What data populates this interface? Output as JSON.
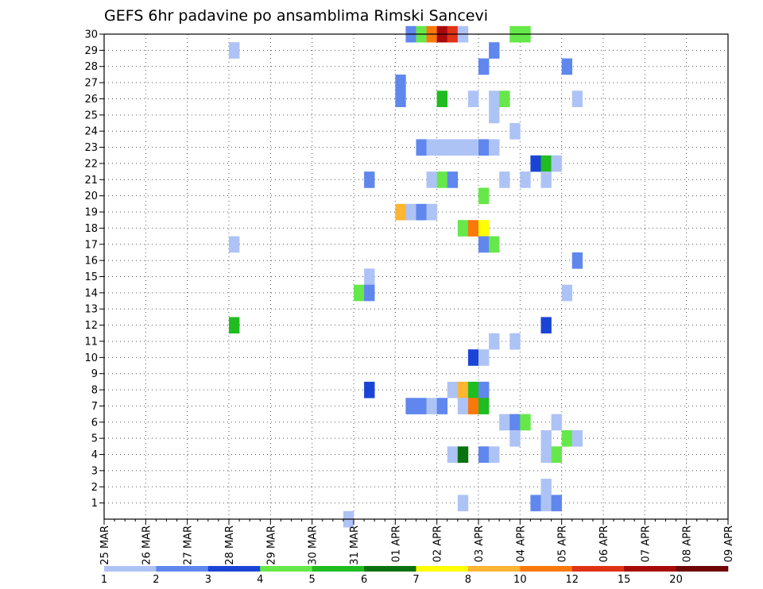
{
  "chart_data": {
    "type": "heatmap",
    "title": "GEFS 6hr padavine po ansamblima Rimski Sancevi",
    "xlabel": "",
    "ylabel": "",
    "x_ticks": [
      "25 MAR",
      "26 MAR",
      "27 MAR",
      "28 MAR",
      "29 MAR",
      "30 MAR",
      "31 MAR",
      "01 APR",
      "02 APR",
      "03 APR",
      "04 APR",
      "05 APR",
      "06 APR",
      "07 APR",
      "08 APR",
      "09 APR"
    ],
    "y_ticks": [
      "1",
      "2",
      "3",
      "4",
      "5",
      "6",
      "7",
      "8",
      "9",
      "10",
      "11",
      "12",
      "13",
      "14",
      "15",
      "16",
      "17",
      "18",
      "19",
      "20",
      "21",
      "22",
      "23",
      "24",
      "25",
      "26",
      "27",
      "28",
      "29",
      "30"
    ],
    "xlim": [
      "25 MAR 00z",
      "09 APR 00z"
    ],
    "ylim": [
      0,
      30
    ],
    "grid": true,
    "steps_per_day": 4,
    "colorbar": {
      "levels": [
        "1",
        "2",
        "3",
        "4",
        "5",
        "6",
        "7",
        "8",
        "10",
        "12",
        "15",
        "20"
      ],
      "colors": [
        "#aec3f5",
        "#5f87ee",
        "#1a44d6",
        "#66e84a",
        "#1fbd1f",
        "#0a7310",
        "#ffff00",
        "#ffb432",
        "#fa780a",
        "#e03214",
        "#a80a0a",
        "#6e0404"
      ]
    },
    "cells": [
      {
        "member": 30,
        "step": 29,
        "level": 2
      },
      {
        "member": 30,
        "step": 30,
        "level": 4
      },
      {
        "member": 30,
        "step": 31,
        "level": 10
      },
      {
        "member": 30,
        "step": 32,
        "level": 15
      },
      {
        "member": 30,
        "step": 33,
        "level": 12
      },
      {
        "member": 30,
        "step": 34,
        "level": 1
      },
      {
        "member": 30,
        "step": 39,
        "level": 4
      },
      {
        "member": 30,
        "step": 40,
        "level": 4
      },
      {
        "member": 29,
        "step": 12,
        "level": 1
      },
      {
        "member": 29,
        "step": 37,
        "level": 2
      },
      {
        "member": 28,
        "step": 36,
        "level": 2
      },
      {
        "member": 28,
        "step": 44,
        "level": 2
      },
      {
        "member": 27,
        "step": 28,
        "level": 2
      },
      {
        "member": 26,
        "step": 28,
        "level": 2
      },
      {
        "member": 26,
        "step": 32,
        "level": 5
      },
      {
        "member": 26,
        "step": 35,
        "level": 1
      },
      {
        "member": 26,
        "step": 37,
        "level": 1
      },
      {
        "member": 26,
        "step": 38,
        "level": 4
      },
      {
        "member": 26,
        "step": 45,
        "level": 1
      },
      {
        "member": 25,
        "step": 37,
        "level": 1
      },
      {
        "member": 24,
        "step": 39,
        "level": 1
      },
      {
        "member": 23,
        "step": 30,
        "level": 2
      },
      {
        "member": 23,
        "step": 31,
        "level": 1
      },
      {
        "member": 23,
        "step": 32,
        "level": 1
      },
      {
        "member": 23,
        "step": 33,
        "level": 1
      },
      {
        "member": 23,
        "step": 34,
        "level": 1
      },
      {
        "member": 23,
        "step": 35,
        "level": 1
      },
      {
        "member": 23,
        "step": 36,
        "level": 2
      },
      {
        "member": 23,
        "step": 37,
        "level": 1
      },
      {
        "member": 22,
        "step": 41,
        "level": 3
      },
      {
        "member": 22,
        "step": 42,
        "level": 5
      },
      {
        "member": 22,
        "step": 43,
        "level": 1
      },
      {
        "member": 21,
        "step": 25,
        "level": 2
      },
      {
        "member": 21,
        "step": 31,
        "level": 1
      },
      {
        "member": 21,
        "step": 32,
        "level": 4
      },
      {
        "member": 21,
        "step": 33,
        "level": 2
      },
      {
        "member": 21,
        "step": 38,
        "level": 1
      },
      {
        "member": 21,
        "step": 40,
        "level": 1
      },
      {
        "member": 21,
        "step": 42,
        "level": 1
      },
      {
        "member": 20,
        "step": 36,
        "level": 4
      },
      {
        "member": 19,
        "step": 28,
        "level": 8
      },
      {
        "member": 19,
        "step": 29,
        "level": 1
      },
      {
        "member": 19,
        "step": 30,
        "level": 2
      },
      {
        "member": 19,
        "step": 31,
        "level": 1
      },
      {
        "member": 18,
        "step": 34,
        "level": 4
      },
      {
        "member": 18,
        "step": 35,
        "level": 10
      },
      {
        "member": 18,
        "step": 36,
        "level": 7
      },
      {
        "member": 17,
        "step": 12,
        "level": 1
      },
      {
        "member": 17,
        "step": 36,
        "level": 2
      },
      {
        "member": 17,
        "step": 37,
        "level": 4
      },
      {
        "member": 16,
        "step": 45,
        "level": 2
      },
      {
        "member": 15,
        "step": 25,
        "level": 1
      },
      {
        "member": 14,
        "step": 24,
        "level": 4
      },
      {
        "member": 14,
        "step": 25,
        "level": 2
      },
      {
        "member": 14,
        "step": 44,
        "level": 1
      },
      {
        "member": 12,
        "step": 12,
        "level": 5
      },
      {
        "member": 12,
        "step": 42,
        "level": 3
      },
      {
        "member": 11,
        "step": 37,
        "level": 1
      },
      {
        "member": 11,
        "step": 39,
        "level": 1
      },
      {
        "member": 10,
        "step": 35,
        "level": 3
      },
      {
        "member": 10,
        "step": 36,
        "level": 1
      },
      {
        "member": 8,
        "step": 25,
        "level": 3
      },
      {
        "member": 8,
        "step": 33,
        "level": 1
      },
      {
        "member": 8,
        "step": 34,
        "level": 8
      },
      {
        "member": 8,
        "step": 35,
        "level": 5
      },
      {
        "member": 8,
        "step": 36,
        "level": 2
      },
      {
        "member": 7,
        "step": 29,
        "level": 2
      },
      {
        "member": 7,
        "step": 30,
        "level": 2
      },
      {
        "member": 7,
        "step": 31,
        "level": 1
      },
      {
        "member": 7,
        "step": 32,
        "level": 2
      },
      {
        "member": 7,
        "step": 34,
        "level": 1
      },
      {
        "member": 7,
        "step": 35,
        "level": 10
      },
      {
        "member": 7,
        "step": 36,
        "level": 5
      },
      {
        "member": 6,
        "step": 38,
        "level": 1
      },
      {
        "member": 6,
        "step": 39,
        "level": 2
      },
      {
        "member": 6,
        "step": 40,
        "level": 4
      },
      {
        "member": 6,
        "step": 43,
        "level": 1
      },
      {
        "member": 5,
        "step": 39,
        "level": 1
      },
      {
        "member": 5,
        "step": 42,
        "level": 1
      },
      {
        "member": 5,
        "step": 44,
        "level": 4
      },
      {
        "member": 5,
        "step": 45,
        "level": 1
      },
      {
        "member": 4,
        "step": 33,
        "level": 1
      },
      {
        "member": 4,
        "step": 34,
        "level": 6
      },
      {
        "member": 4,
        "step": 36,
        "level": 2
      },
      {
        "member": 4,
        "step": 37,
        "level": 1
      },
      {
        "member": 4,
        "step": 42,
        "level": 1
      },
      {
        "member": 4,
        "step": 43,
        "level": 4
      },
      {
        "member": 2,
        "step": 42,
        "level": 1
      },
      {
        "member": 1,
        "step": 34,
        "level": 1
      },
      {
        "member": 1,
        "step": 41,
        "level": 2
      },
      {
        "member": 1,
        "step": 42,
        "level": 1
      },
      {
        "member": 1,
        "step": 43,
        "level": 2
      },
      {
        "member": 0,
        "step": 23,
        "level": 1
      }
    ]
  }
}
